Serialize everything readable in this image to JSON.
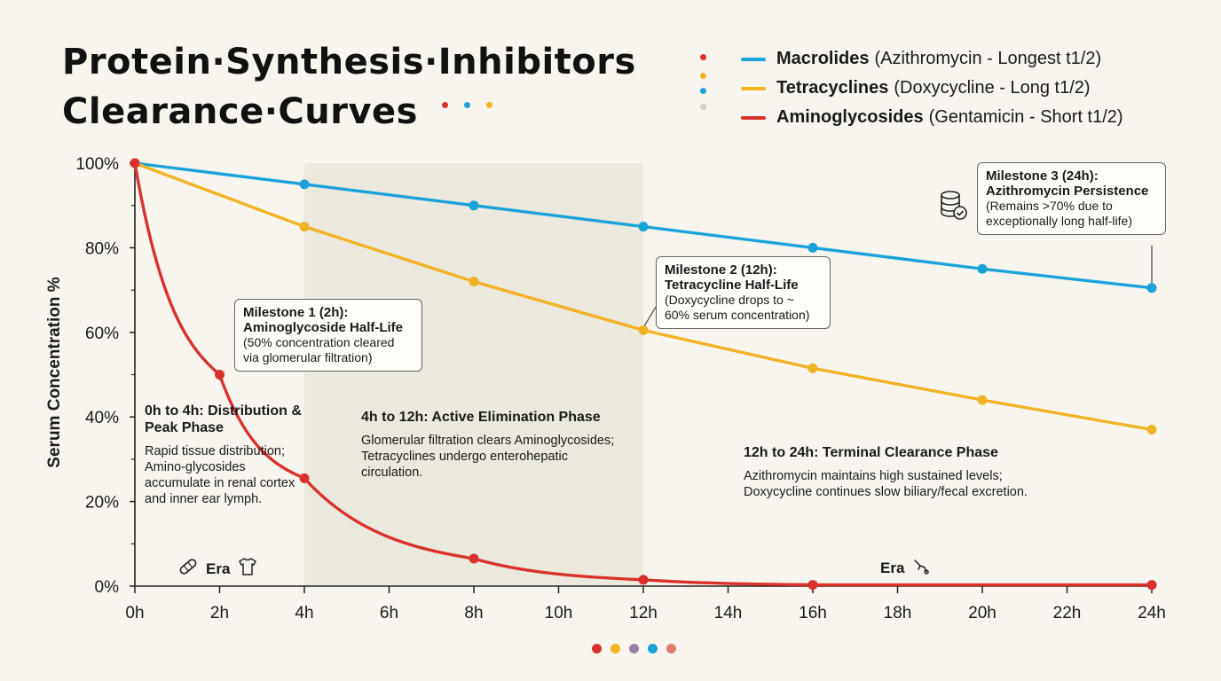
{
  "title": {
    "line1": "Protein·Synthesis·Inhibitors",
    "line2": "Clearance·Curves"
  },
  "legend": [
    {
      "bold": "Macrolides",
      "rest": "(Azithromycin - Longest t1/2)",
      "color": "#1aa3d9"
    },
    {
      "bold": "Tetracyclines",
      "rest": "(Doxycycline - Long t1/2)",
      "color": "#f0b323"
    },
    {
      "bold": "Aminoglycosides",
      "rest": "(Gentamicin - Short t1/2)",
      "color": "#d9312b"
    }
  ],
  "chart_data": {
    "type": "line",
    "x": [
      0,
      2,
      4,
      6,
      8,
      10,
      12,
      14,
      16,
      18,
      20,
      22,
      24
    ],
    "x_tick_labels": [
      "0h",
      "2h",
      "4h",
      "6h",
      "8h",
      "10h",
      "12h",
      "14h",
      "16h",
      "18h",
      "20h",
      "22h",
      "24h"
    ],
    "y_tick_labels": [
      "100%",
      "80%",
      "60%",
      "40%",
      "20%",
      "0%"
    ],
    "y_ticks": [
      100,
      80,
      60,
      40,
      20,
      0
    ],
    "xlim": [
      0,
      24
    ],
    "ylim": [
      0,
      100
    ],
    "ylabel": "Serum Concentration %",
    "xlabel": "",
    "grid": false,
    "legend_position": "top-right",
    "shaded_region": [
      4,
      12
    ],
    "series": [
      {
        "name": "Macrolides (Azithromycin - Longest t1/2)",
        "color": "#1aa3d9",
        "points": [
          [
            0,
            100
          ],
          [
            4,
            95
          ],
          [
            8,
            90
          ],
          [
            12,
            85
          ],
          [
            16,
            80
          ],
          [
            20,
            75
          ],
          [
            24,
            70.5
          ]
        ]
      },
      {
        "name": "Tetracyclines (Doxycycline - Long t1/2)",
        "color": "#f0b323",
        "points": [
          [
            0,
            100
          ],
          [
            4,
            85
          ],
          [
            8,
            72
          ],
          [
            12,
            60.5
          ],
          [
            16,
            51.5
          ],
          [
            20,
            44
          ],
          [
            24,
            37
          ]
        ]
      },
      {
        "name": "Aminoglycosides (Gentamicin - Short t1/2)",
        "color": "#d9312b",
        "points": [
          [
            0,
            100
          ],
          [
            2,
            50
          ],
          [
            4,
            25.5
          ],
          [
            8,
            6.5
          ],
          [
            12,
            1.5
          ],
          [
            16,
            0.3
          ],
          [
            24,
            0.3
          ]
        ]
      }
    ]
  },
  "callouts": [
    {
      "title": "Milestone 1 (2h):",
      "subtitle": "Aminoglycoside Half-Life",
      "body": "(50% concentration cleared via glomerular filtration)"
    },
    {
      "title": "Milestone 2 (12h):",
      "subtitle": "Tetracycline Half-Life",
      "body": "(Doxycycline drops to ~ 60% serum concentration)"
    },
    {
      "title": "Milestone 3 (24h):",
      "subtitle": "Azithromycin Persistence",
      "body": "(Remains >70% due to exceptionally long half-life)"
    }
  ],
  "phases": [
    {
      "title": "0h to 4h: Distribution & Peak Phase",
      "body": "Rapid tissue distribution; Amino-glycosides accumulate in renal cortex and inner ear lymph."
    },
    {
      "title": "4h to 12h: Active Elimination Phase",
      "body": "Glomerular filtration clears Aminoglycosides; Tetracyclines undergo enterohepatic circulation."
    },
    {
      "title": "12h to 24h: Terminal Clearance Phase",
      "body": "Azithromycin maintains high sustained levels; Doxycycline continues slow biliary/fecal excretion."
    }
  ],
  "eras": [
    "Era",
    "Era"
  ],
  "icons": [
    "bandage-icon",
    "shirt-icon",
    "sling-icon",
    "database-check-icon"
  ],
  "colors": {
    "background": "#f8f5ee",
    "shade": "#ebe8dd",
    "dot_purple": "#9a7fa5",
    "dot_salmon": "#e07b6f"
  }
}
